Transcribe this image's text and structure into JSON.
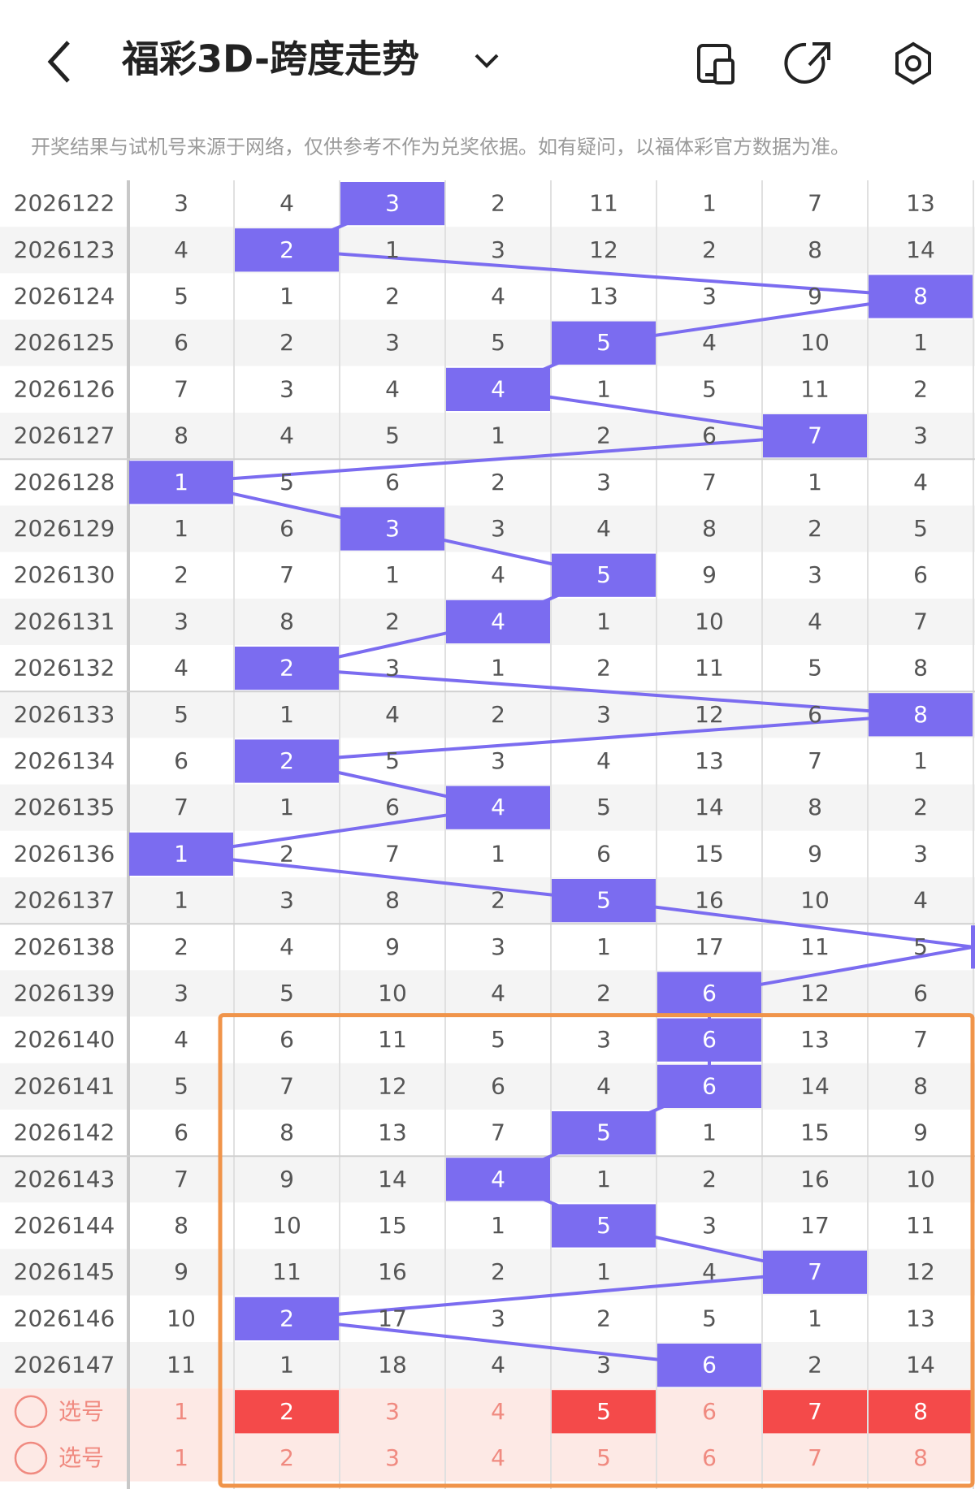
{
  "header": {
    "title": "福彩3D-跨度走势"
  },
  "notice": "开奖结果与试机号来源于网络，仅供参考不作为兑奖依据。如有疑问，以福体彩官方数据为准。",
  "table": {
    "rows": [
      {
        "issue": "2026122",
        "values": [
          3,
          4,
          3,
          2,
          11,
          1,
          7,
          13
        ],
        "hit": 2
      },
      {
        "issue": "2026123",
        "values": [
          4,
          2,
          1,
          3,
          12,
          2,
          8,
          14
        ],
        "hit": 1
      },
      {
        "issue": "2026124",
        "values": [
          5,
          1,
          2,
          4,
          13,
          3,
          9,
          8
        ],
        "hit": 7
      },
      {
        "issue": "2026125",
        "values": [
          6,
          2,
          3,
          5,
          5,
          4,
          10,
          1
        ],
        "hit": 4
      },
      {
        "issue": "2026126",
        "values": [
          7,
          3,
          4,
          4,
          1,
          5,
          11,
          2
        ],
        "hit": 3
      },
      {
        "issue": "2026127",
        "values": [
          8,
          4,
          5,
          1,
          2,
          6,
          7,
          3
        ],
        "hit": 6
      },
      {
        "issue": "2026128",
        "values": [
          1,
          5,
          6,
          2,
          3,
          7,
          1,
          4
        ],
        "hit": 0
      },
      {
        "issue": "2026129",
        "values": [
          1,
          6,
          3,
          3,
          4,
          8,
          2,
          5
        ],
        "hit": 2
      },
      {
        "issue": "2026130",
        "values": [
          2,
          7,
          1,
          4,
          5,
          9,
          3,
          6
        ],
        "hit": 4
      },
      {
        "issue": "2026131",
        "values": [
          3,
          8,
          2,
          4,
          1,
          10,
          4,
          7
        ],
        "hit": 3
      },
      {
        "issue": "2026132",
        "values": [
          4,
          2,
          3,
          1,
          2,
          11,
          5,
          8
        ],
        "hit": 1
      },
      {
        "issue": "2026133",
        "values": [
          5,
          1,
          4,
          2,
          3,
          12,
          6,
          8
        ],
        "hit": 7
      },
      {
        "issue": "2026134",
        "values": [
          6,
          2,
          5,
          3,
          4,
          13,
          7,
          1
        ],
        "hit": 1
      },
      {
        "issue": "2026135",
        "values": [
          7,
          1,
          6,
          4,
          5,
          14,
          8,
          2
        ],
        "hit": 3
      },
      {
        "issue": "2026136",
        "values": [
          1,
          2,
          7,
          1,
          6,
          15,
          9,
          3
        ],
        "hit": 0
      },
      {
        "issue": "2026137",
        "values": [
          1,
          3,
          8,
          2,
          5,
          16,
          10,
          4
        ],
        "hit": 4
      },
      {
        "issue": "2026138",
        "values": [
          2,
          4,
          9,
          3,
          1,
          17,
          11,
          5
        ],
        "hit": 8
      },
      {
        "issue": "2026139",
        "values": [
          3,
          5,
          10,
          4,
          2,
          6,
          12,
          6
        ],
        "hit": 5
      },
      {
        "issue": "2026140",
        "values": [
          4,
          6,
          11,
          5,
          3,
          6,
          13,
          7
        ],
        "hit": 5
      },
      {
        "issue": "2026141",
        "values": [
          5,
          7,
          12,
          6,
          4,
          6,
          14,
          8
        ],
        "hit": 5
      },
      {
        "issue": "2026142",
        "values": [
          6,
          8,
          13,
          7,
          5,
          1,
          15,
          9
        ],
        "hit": 4
      },
      {
        "issue": "2026143",
        "values": [
          7,
          9,
          14,
          4,
          1,
          2,
          16,
          10
        ],
        "hit": 3
      },
      {
        "issue": "2026144",
        "values": [
          8,
          10,
          15,
          1,
          5,
          3,
          17,
          11
        ],
        "hit": 4
      },
      {
        "issue": "2026145",
        "values": [
          9,
          11,
          16,
          2,
          1,
          4,
          7,
          12
        ],
        "hit": 6
      },
      {
        "issue": "2026146",
        "values": [
          10,
          2,
          17,
          3,
          2,
          5,
          1,
          13
        ],
        "hit": 1
      },
      {
        "issue": "2026147",
        "values": [
          11,
          1,
          18,
          4,
          3,
          6,
          2,
          14
        ],
        "hit": 5
      }
    ],
    "select_rows": [
      {
        "label": "选号",
        "values": [
          1,
          2,
          3,
          4,
          5,
          6,
          7,
          8
        ],
        "selected": [
          1,
          4,
          6,
          7
        ]
      },
      {
        "label": "选号",
        "values": [
          1,
          2,
          3,
          4,
          5,
          6,
          7,
          8
        ]
      }
    ]
  }
}
